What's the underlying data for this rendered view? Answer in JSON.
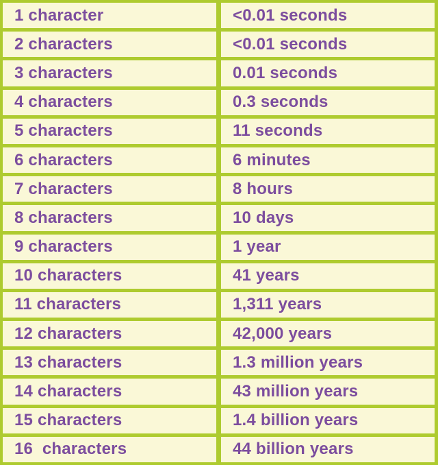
{
  "colors": {
    "border_green": "#aecb2f",
    "cell_cream": "#faf8d7",
    "text_purple": "#7c4d9e"
  },
  "chart_data": {
    "type": "table",
    "rows": [
      [
        "1 character",
        "<0.01 seconds"
      ],
      [
        "2 characters",
        "<0.01 seconds"
      ],
      [
        "3 characters",
        "0.01 seconds"
      ],
      [
        "4 characters",
        "0.3 seconds"
      ],
      [
        "5 characters",
        "11 seconds"
      ],
      [
        "6 characters",
        "6 minutes"
      ],
      [
        "7 characters",
        "8 hours"
      ],
      [
        "8 characters",
        "10 days"
      ],
      [
        "9 characters",
        "1 year"
      ],
      [
        "10 characters",
        "41 years"
      ],
      [
        "11 characters",
        "1,311 years"
      ],
      [
        "12 characters",
        "42,000 years"
      ],
      [
        "13 characters",
        "1.3 million years"
      ],
      [
        "14 characters",
        "43 million years"
      ],
      [
        "15 characters",
        "1.4 billion years"
      ],
      [
        "16  characters",
        "44 billion years"
      ]
    ]
  }
}
